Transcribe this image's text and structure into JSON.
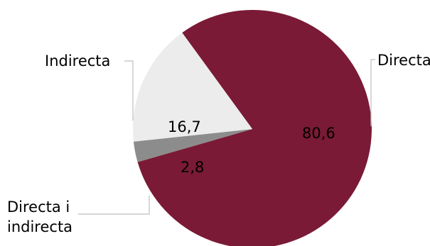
{
  "chart_data": {
    "type": "pie",
    "slices": [
      {
        "label": "Directa",
        "value": 80.6,
        "display": "80,6",
        "color": "#7a1a36"
      },
      {
        "label": "Directa i indirecta",
        "label_lines": [
          "Directa i",
          "indirecta"
        ],
        "value": 2.8,
        "display": "2,8",
        "color": "#8c8c8c"
      },
      {
        "label": "Indirecta",
        "value": 16.7,
        "display": "16,7",
        "color": "#ececec"
      }
    ],
    "title": "",
    "legend": "leader-lines"
  }
}
